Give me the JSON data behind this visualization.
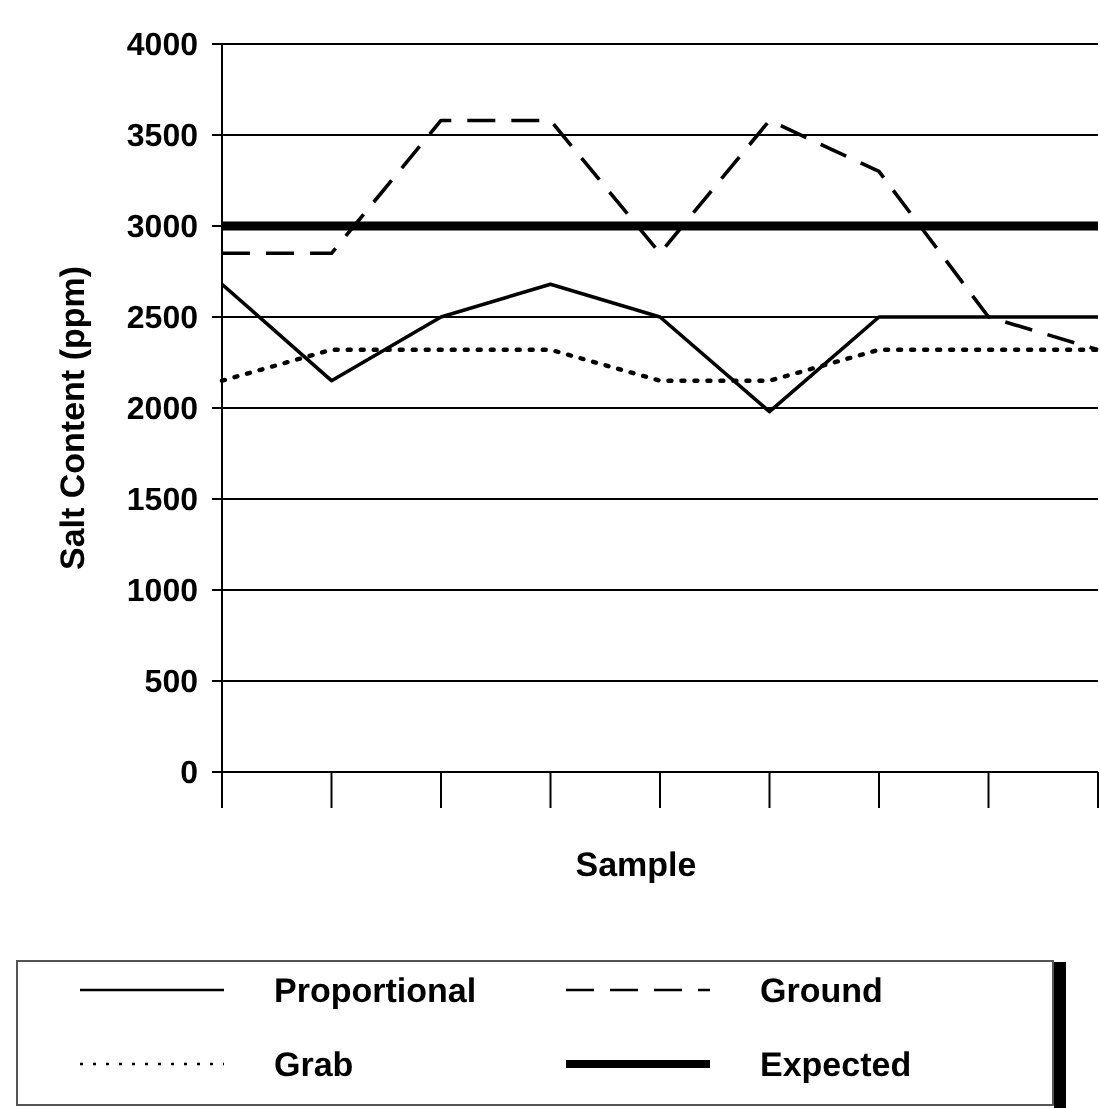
{
  "chart_data": {
    "type": "line",
    "xlabel": "Sample",
    "ylabel": "Salt Content (ppm)",
    "categories": [
      null,
      null,
      null,
      null,
      null,
      null,
      null,
      null,
      null
    ],
    "series": [
      {
        "name": "Proportional",
        "color": "#000000",
        "line_style": "solid",
        "values": [
          2680,
          2150,
          2500,
          2680,
          2500,
          1980,
          2500,
          2500,
          2500
        ]
      },
      {
        "name": "Ground",
        "color": "#000000",
        "line_style": "dashed",
        "values": [
          2850,
          2850,
          3580,
          3580,
          2850,
          3580,
          3300,
          2500,
          2320
        ]
      },
      {
        "name": "Grab",
        "color": "#000000",
        "line_style": "dotted",
        "values": [
          2150,
          2320,
          2320,
          2320,
          2150,
          2150,
          2320,
          2320,
          2320
        ]
      }
    ],
    "ref_lines": [
      {
        "axis": "y",
        "value": 3000,
        "label": "Expected",
        "color": "#000000"
      }
    ],
    "ylim": [
      0,
      4000
    ],
    "yticks": [
      0,
      500,
      1000,
      1500,
      2000,
      2500,
      3000,
      3500,
      4000
    ],
    "grid": "y",
    "legend": "bottom",
    "marker": "none"
  }
}
